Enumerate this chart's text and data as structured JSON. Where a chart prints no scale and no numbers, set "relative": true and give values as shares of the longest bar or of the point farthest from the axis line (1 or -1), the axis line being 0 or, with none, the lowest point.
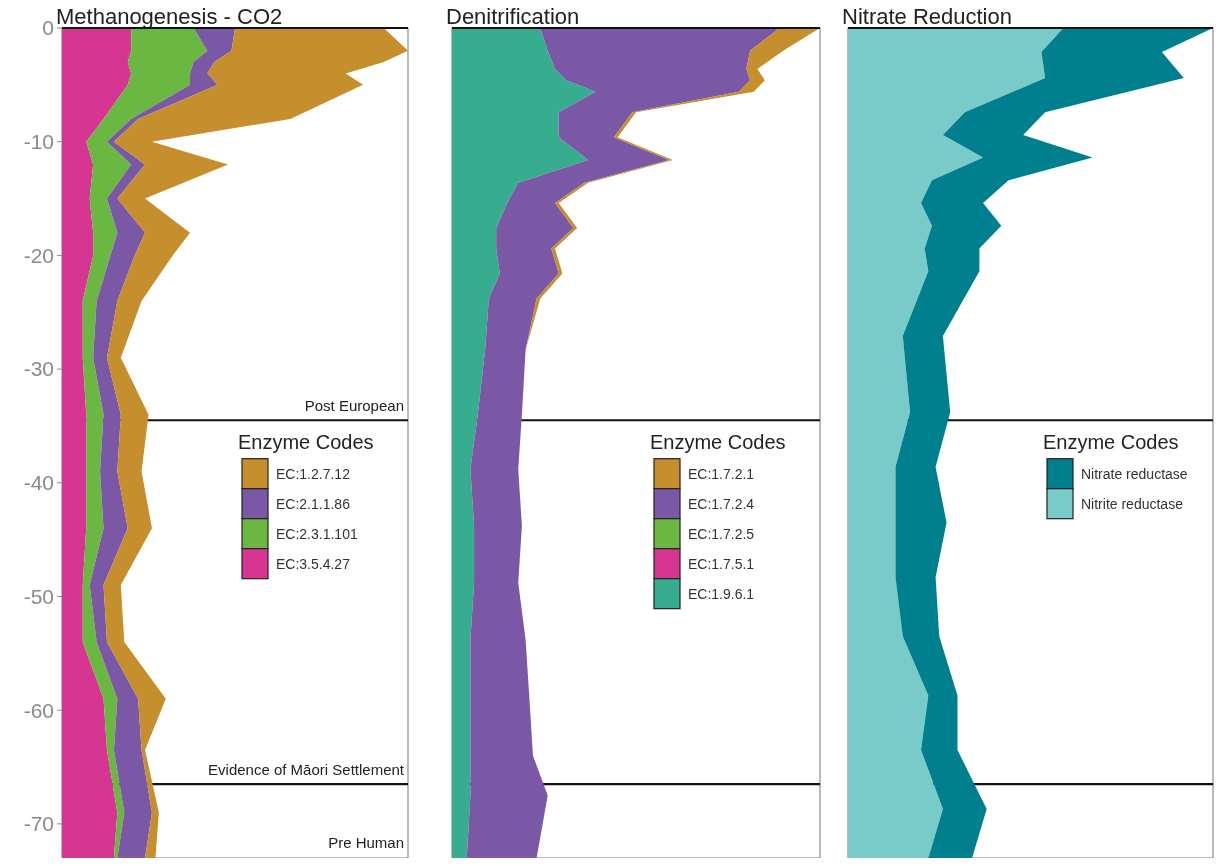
{
  "chart_data": [
    {
      "type": "area",
      "title": "Methanogenesis - CO2",
      "orientation": "horizontal",
      "stacked": true,
      "relative": true,
      "legend": "right",
      "legend_title": "Enzyme Codes",
      "tick_labels": "y",
      "ylim": [
        -73,
        0
      ],
      "yticks": [
        0,
        -10,
        -20,
        -30,
        -40,
        -50,
        -60,
        -70
      ],
      "x": [
        0,
        -2,
        -3,
        -4,
        -5,
        -8,
        -10,
        -12,
        -15,
        -18,
        -20,
        -24,
        -29,
        -34,
        -39,
        -44,
        -49,
        -54,
        -59,
        -63.5,
        -69,
        -73
      ],
      "series": [
        {
          "name": "EC:3.5.4.27",
          "color": "#d63591",
          "values": [
            0.2,
            0.2,
            0.19,
            0.2,
            0.19,
            0.12,
            0.07,
            0.09,
            0.08,
            0.09,
            0.09,
            0.06,
            0.06,
            0.07,
            0.07,
            0.07,
            0.06,
            0.06,
            0.12,
            0.13,
            0.16,
            0.15
          ]
        },
        {
          "name": "EC:2.3.1.101",
          "color": "#6ab842",
          "values": [
            0.18,
            0.22,
            0.19,
            0.17,
            0.18,
            0.08,
            0.06,
            0.11,
            0.05,
            0.07,
            0.05,
            0.04,
            0.03,
            0.05,
            0.04,
            0.05,
            0.02,
            0.04,
            0.04,
            0.02,
            0.02,
            0.01
          ]
        },
        {
          "name": "EC:2.1.1.86",
          "color": "#7b58a6",
          "values": [
            0.12,
            0.07,
            0.06,
            0.05,
            0.08,
            0.02,
            0.02,
            0.04,
            0.03,
            0.08,
            0.07,
            0.06,
            0.04,
            0.05,
            0.05,
            0.07,
            0.04,
            0.03,
            0.06,
            0.08,
            0.08,
            0.08
          ]
        },
        {
          "name": "EC:1.2.7.12",
          "color": "#c58f2e",
          "values": [
            0.43,
            0.51,
            0.49,
            0.4,
            0.42,
            0.44,
            0.11,
            0.24,
            0.08,
            0.13,
            0.11,
            0.07,
            0.04,
            0.08,
            0.07,
            0.07,
            0.05,
            0.05,
            0.08,
            0.01,
            0.02,
            0.03
          ]
        }
      ],
      "ref_lines": [
        {
          "axis": "y",
          "value": -34.5,
          "label": "Post European"
        },
        {
          "axis": "y",
          "value": -66.5,
          "label": "Evidence of Māori Settlement"
        }
      ],
      "annotations": [
        "Pre Human"
      ]
    },
    {
      "type": "area",
      "title": "Denitrification",
      "orientation": "horizontal",
      "stacked": true,
      "relative": true,
      "legend": "right",
      "legend_title": "Enzyme Codes",
      "tick_labels": false,
      "ylim": [
        -73,
        0
      ],
      "x": [
        0,
        -2,
        -3.6,
        -4.6,
        -5.6,
        -7.4,
        -9.6,
        -11.6,
        -13.6,
        -15.4,
        -17.6,
        -19.4,
        -21.6,
        -23.8,
        -28.3,
        -34,
        -38.8,
        -43.8,
        -48.8,
        -53.8,
        -58.8,
        -64,
        -67.5,
        -73
      ],
      "series": [
        {
          "name": "EC:1.9.6.1",
          "color": "#35ad8e",
          "values": [
            0.24,
            0.26,
            0.28,
            0.31,
            0.39,
            0.29,
            0.29,
            0.37,
            0.18,
            0.15,
            0.12,
            0.12,
            0.13,
            0.1,
            0.09,
            0.07,
            0.05,
            0.06,
            0.06,
            0.05,
            0.05,
            0.05,
            0.05,
            0.04
          ]
        },
        {
          "name": "EC:1.7.5.1",
          "color": "#d63591",
          "values": [
            null,
            null,
            null,
            null,
            null,
            null,
            null,
            null,
            null,
            null,
            null,
            null,
            null,
            null,
            null,
            null,
            null,
            null,
            null,
            null,
            null,
            null,
            null,
            null
          ]
        },
        {
          "name": "EC:1.7.2.5",
          "color": "#6ab842",
          "values": [
            null,
            null,
            null,
            null,
            null,
            null,
            null,
            null,
            null,
            null,
            null,
            null,
            null,
            null,
            null,
            null,
            null,
            null,
            null,
            null,
            null,
            null,
            null,
            null
          ]
        },
        {
          "name": "EC:1.7.2.4",
          "color": "#7b58a6",
          "values": [
            0.65,
            0.55,
            0.52,
            0.5,
            0.39,
            0.2,
            0.15,
            0.22,
            0.18,
            0.13,
            0.21,
            0.15,
            0.16,
            0.13,
            0.11,
            0.12,
            0.13,
            0.13,
            0.12,
            0.15,
            0.16,
            0.17,
            0.21,
            0.19
          ]
        },
        {
          "name": "EC:1.7.2.1",
          "color": "#c58f2e",
          "values": [
            0.11,
            0.09,
            0.03,
            0.04,
            0.04,
            0.01,
            0.01,
            0.01,
            0.01,
            0.01,
            0.01,
            0.01,
            0.01,
            0.01,
            0,
            0,
            0,
            0,
            0,
            0,
            0,
            0,
            0,
            0
          ]
        }
      ],
      "ref_lines": [
        {
          "axis": "y",
          "value": -34.5
        },
        {
          "axis": "y",
          "value": -66.5
        }
      ]
    },
    {
      "type": "area",
      "title": "Nitrate Reduction",
      "orientation": "horizontal",
      "stacked": true,
      "relative": true,
      "legend": "right",
      "legend_title": "Enzyme Codes",
      "tick_labels": false,
      "ylim": [
        -73,
        0
      ],
      "x": [
        0,
        -2.1,
        -4.4,
        -7.4,
        -9.4,
        -11.4,
        -13.4,
        -15.4,
        -17.4,
        -19.4,
        -21.4,
        -27.1,
        -33.8,
        -38.6,
        -43.5,
        -48.3,
        -53.5,
        -58.7,
        -63.5,
        -68.7,
        -73
      ],
      "series": [
        {
          "name": "Nitrite reductase",
          "color": "#79cbca",
          "values": [
            0.59,
            0.53,
            0.54,
            0.32,
            0.26,
            0.37,
            0.23,
            0.2,
            0.23,
            0.21,
            0.22,
            0.15,
            0.17,
            0.13,
            0.13,
            0.13,
            0.15,
            0.22,
            0.2,
            0.26,
            0.22
          ]
        },
        {
          "name": "Nitrate reductase",
          "color": "#00808f",
          "values": [
            0.41,
            0.33,
            0.38,
            0.22,
            0.22,
            0.3,
            0.21,
            0.17,
            0.19,
            0.15,
            0.14,
            0.11,
            0.11,
            0.11,
            0.14,
            0.11,
            0.1,
            0.08,
            0.1,
            0.12,
            0.12
          ]
        }
      ],
      "ref_lines": [
        {
          "axis": "y",
          "value": -34.5
        },
        {
          "axis": "y",
          "value": -66.5
        }
      ]
    }
  ]
}
